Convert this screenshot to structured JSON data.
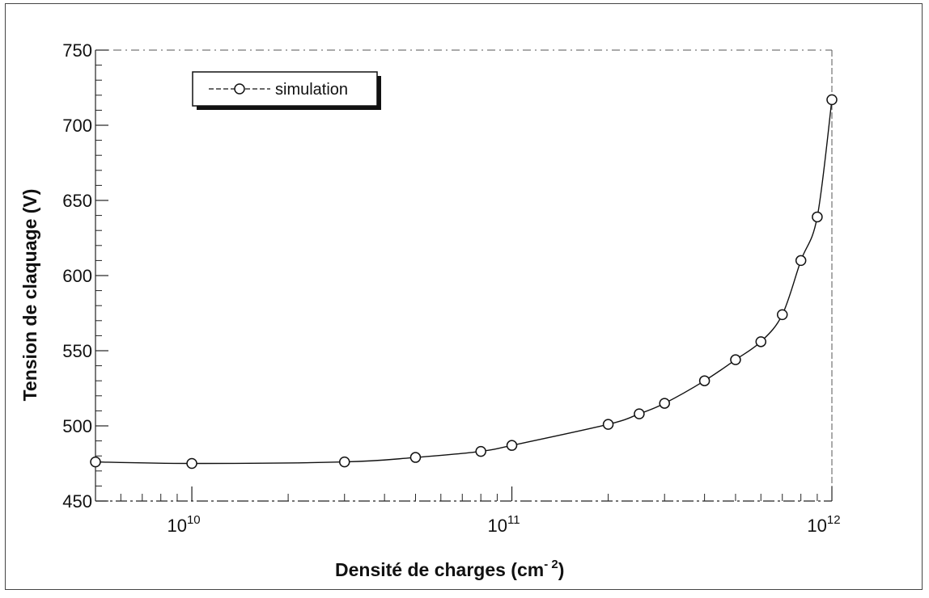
{
  "chart_data": {
    "type": "line",
    "title": "",
    "xlabel": "Densité de charges (cm",
    "xlabel_sup": "- 2",
    "xlabel_close": ")",
    "ylabel": "Tension de claquage (V)",
    "x_scale": "log",
    "xlim": [
      5000000000.0,
      1000000000000.0
    ],
    "ylim": [
      450,
      750
    ],
    "grid": false,
    "legend_position": "top-left",
    "x_ticks": [
      {
        "value": 10000000000.0,
        "base": "10",
        "exp": "10"
      },
      {
        "value": 100000000000.0,
        "base": "10",
        "exp": "11"
      },
      {
        "value": 1000000000000.0,
        "base": "10",
        "exp": "12"
      }
    ],
    "y_ticks": [
      {
        "value": 450,
        "label": "450"
      },
      {
        "value": 500,
        "label": "500"
      },
      {
        "value": 550,
        "label": "550"
      },
      {
        "value": 600,
        "label": "600"
      },
      {
        "value": 650,
        "label": "650"
      },
      {
        "value": 700,
        "label": "700"
      },
      {
        "value": 750,
        "label": "750"
      }
    ],
    "series": [
      {
        "name": "simulation",
        "color": "#111111",
        "marker": "circle",
        "points": [
          {
            "x": 5000000000.0,
            "y": 476
          },
          {
            "x": 10000000000.0,
            "y": 475
          },
          {
            "x": 30000000000.0,
            "y": 476
          },
          {
            "x": 50000000000.0,
            "y": 479
          },
          {
            "x": 80000000000.0,
            "y": 483
          },
          {
            "x": 100000000000.0,
            "y": 487
          },
          {
            "x": 200000000000.0,
            "y": 501
          },
          {
            "x": 250000000000.0,
            "y": 508
          },
          {
            "x": 300000000000.0,
            "y": 515
          },
          {
            "x": 400000000000.0,
            "y": 530
          },
          {
            "x": 500000000000.0,
            "y": 544
          },
          {
            "x": 600000000000.0,
            "y": 556
          },
          {
            "x": 700000000000.0,
            "y": 574
          },
          {
            "x": 800000000000.0,
            "y": 610
          },
          {
            "x": 900000000000.0,
            "y": 639
          },
          {
            "x": 1000000000000.0,
            "y": 717
          }
        ]
      }
    ]
  }
}
